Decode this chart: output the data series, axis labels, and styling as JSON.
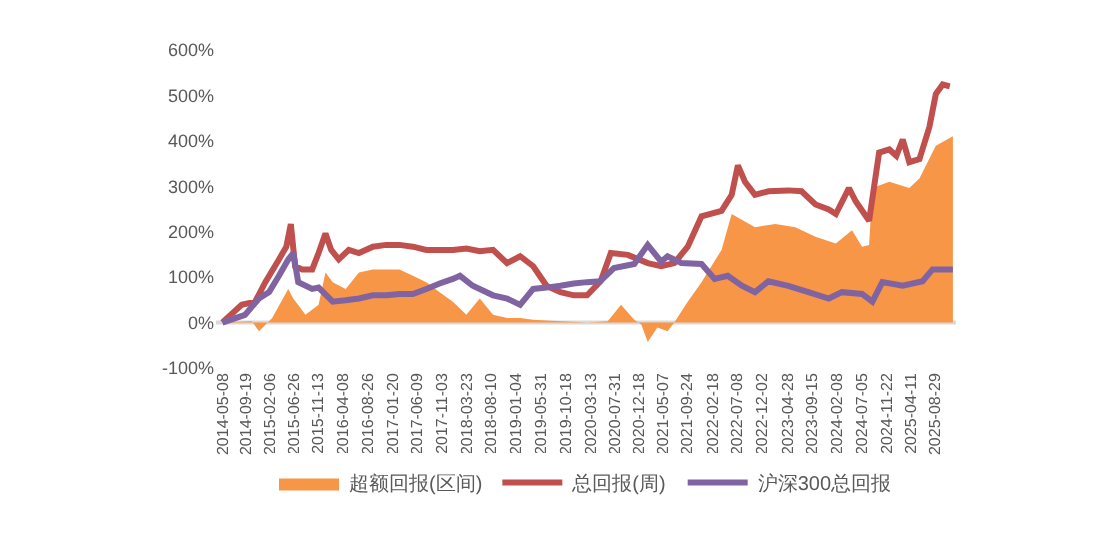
{
  "chart_data": {
    "type": "line",
    "xlim": [
      "2014-04-01",
      "2025-12-31"
    ],
    "xticks": [
      "2014-05-08",
      "2014-09-19",
      "2015-02-06",
      "2015-06-26",
      "2015-11-13",
      "2016-04-08",
      "2016-08-26",
      "2017-01-20",
      "2017-06-09",
      "2017-11-03",
      "2018-03-23",
      "2018-08-10",
      "2019-01-04",
      "2019-05-31",
      "2019-10-18",
      "2020-03-13",
      "2020-07-31",
      "2020-12-18",
      "2021-05-07",
      "2021-09-24",
      "2022-02-18",
      "2022-07-08",
      "2022-12-02",
      "2023-04-28",
      "2023-09-15",
      "2024-02-08",
      "2024-07-05",
      "2024-11-22",
      "2025-04-11",
      "2025-08-29"
    ],
    "ylim": [
      -100,
      600
    ],
    "yticks": [
      {
        "value": -100,
        "label": "-100%"
      },
      {
        "value": 0,
        "label": "0%"
      },
      {
        "value": 100,
        "label": "100%"
      },
      {
        "value": 200,
        "label": "200%"
      },
      {
        "value": 300,
        "label": "300%"
      },
      {
        "value": 400,
        "label": "400%"
      },
      {
        "value": 500,
        "label": "500%"
      },
      {
        "value": 600,
        "label": "600%"
      }
    ],
    "grid": false,
    "legend": "bottom",
    "marker": "none",
    "ref_lines": [
      {
        "axis": "y",
        "value": 0,
        "color": "#d9d9d9"
      }
    ],
    "series": [
      {
        "name": "超额回报(区间)",
        "type": "area",
        "color": "#f79646",
        "x": [
          "2014-05-08",
          "2014-10-26",
          "2014-12-06",
          "2015-02-21",
          "2015-05-25",
          "2015-06-23",
          "2015-09-02",
          "2015-11-17",
          "2015-12-27",
          "2016-02-07",
          "2016-04-22",
          "2016-07-08",
          "2016-09-27",
          "2017-02-28",
          "2017-05-17",
          "2017-08-03",
          "2017-10-19",
          "2018-01-04",
          "2018-03-23",
          "2018-06-09",
          "2018-08-25",
          "2018-11-14",
          "2019-01-29",
          "2019-04-15",
          "2019-09-20",
          "2020-02-21",
          "2020-06-20",
          "2020-09-05",
          "2020-11-21",
          "2021-01-01",
          "2021-02-07",
          "2021-04-04",
          "2021-06-02",
          "2021-07-11",
          "2021-09-27",
          "2021-12-16",
          "2022-04-11",
          "2022-06-09",
          "2022-10-22",
          "2023-02-17",
          "2023-06-13",
          "2023-10-08",
          "2024-02-03",
          "2024-05-07",
          "2024-07-04",
          "2024-08-14",
          "2024-09-02",
          "2024-12-09",
          "2025-04-04",
          "2025-06-02",
          "2025-09-05",
          "2025-12-13"
        ],
        "values": [
          0,
          3,
          -19,
          10,
          74,
          53,
          17,
          39,
          110,
          89,
          74,
          110,
          117,
          117,
          103,
          89,
          67,
          46,
          17,
          53,
          17,
          10,
          10,
          6,
          3,
          0,
          3,
          39,
          6,
          -4,
          -43,
          -11,
          -19,
          0,
          46,
          89,
          160,
          239,
          210,
          217,
          210,
          189,
          174,
          203,
          167,
          171,
          296,
          310,
          296,
          317,
          389,
          410
        ]
      },
      {
        "name": "总回报(周)",
        "color": "#c0504d",
        "x": [
          "2014-05-08",
          "2014-08-28",
          "2014-11-14",
          "2015-01-12",
          "2015-04-01",
          "2015-05-14",
          "2015-06-09",
          "2015-07-04",
          "2015-08-14",
          "2015-10-11",
          "2015-11-17",
          "2015-12-27",
          "2016-01-29",
          "2016-03-13",
          "2016-05-10",
          "2016-07-08",
          "2016-09-27",
          "2016-12-13",
          "2017-02-28",
          "2017-05-17",
          "2017-08-03",
          "2017-10-19",
          "2018-01-04",
          "2018-03-23",
          "2018-06-09",
          "2018-08-25",
          "2018-11-14",
          "2019-01-29",
          "2019-04-15",
          "2019-07-01",
          "2019-09-20",
          "2019-12-06",
          "2020-02-21",
          "2020-05-10",
          "2020-07-08",
          "2020-10-15",
          "2021-02-07",
          "2021-04-26",
          "2021-07-11",
          "2021-09-27",
          "2021-12-16",
          "2022-04-11",
          "2022-06-09",
          "2022-07-15",
          "2022-08-25",
          "2022-10-22",
          "2023-01-08",
          "2023-05-03",
          "2023-07-19",
          "2023-10-08",
          "2023-12-24",
          "2024-02-03",
          "2024-04-19",
          "2024-05-28",
          "2024-08-14",
          "2024-10-11",
          "2024-12-09",
          "2025-01-19",
          "2025-02-25",
          "2025-04-04",
          "2025-06-02",
          "2025-07-30",
          "2025-09-05",
          "2025-10-15",
          "2025-11-25"
        ],
        "values": [
          0,
          39,
          46,
          89,
          139,
          167,
          217,
          124,
          117,
          117,
          153,
          196,
          160,
          139,
          160,
          153,
          167,
          171,
          171,
          167,
          160,
          160,
          160,
          163,
          157,
          160,
          131,
          146,
          124,
          81,
          67,
          60,
          60,
          91,
          153,
          149,
          131,
          124,
          131,
          167,
          234,
          246,
          281,
          346,
          310,
          281,
          289,
          291,
          289,
          260,
          249,
          239,
          296,
          267,
          224,
          374,
          381,
          367,
          403,
          353,
          360,
          431,
          503,
          524,
          520
        ]
      },
      {
        "name": "沪深300总回报",
        "color": "#8064a2",
        "x": [
          "2014-05-08",
          "2014-09-16",
          "2014-12-06",
          "2015-02-03",
          "2015-04-01",
          "2015-05-25",
          "2015-06-23",
          "2015-07-22",
          "2015-10-11",
          "2015-11-17",
          "2016-02-07",
          "2016-04-22",
          "2016-07-08",
          "2016-09-27",
          "2016-12-13",
          "2017-02-28",
          "2017-05-17",
          "2017-08-03",
          "2017-10-19",
          "2018-01-04",
          "2018-02-14",
          "2018-04-29",
          "2018-08-25",
          "2018-11-14",
          "2019-01-29",
          "2019-04-15",
          "2019-07-01",
          "2019-09-20",
          "2019-12-06",
          "2020-02-21",
          "2020-05-07",
          "2020-07-26",
          "2020-11-21",
          "2021-02-07",
          "2021-04-26",
          "2021-06-02",
          "2021-08-21",
          "2021-12-16",
          "2022-03-02",
          "2022-05-17",
          "2022-08-07",
          "2022-10-22",
          "2023-01-08",
          "2023-05-03",
          "2023-08-28",
          "2023-12-24",
          "2024-03-09",
          "2024-07-04",
          "2024-09-02",
          "2024-10-30",
          "2025-02-25",
          "2025-06-20",
          "2025-08-17",
          "2025-12-13"
        ],
        "values": [
          0,
          17,
          53,
          67,
          103,
          139,
          153,
          89,
          74,
          77,
          46,
          49,
          53,
          60,
          60,
          63,
          63,
          74,
          86,
          96,
          103,
          81,
          60,
          53,
          39,
          74,
          77,
          81,
          86,
          89,
          91,
          120,
          129,
          171,
          134,
          146,
          131,
          129,
          96,
          103,
          81,
          67,
          91,
          81,
          67,
          53,
          67,
          63,
          46,
          89,
          81,
          91,
          117,
          117
        ]
      }
    ]
  }
}
